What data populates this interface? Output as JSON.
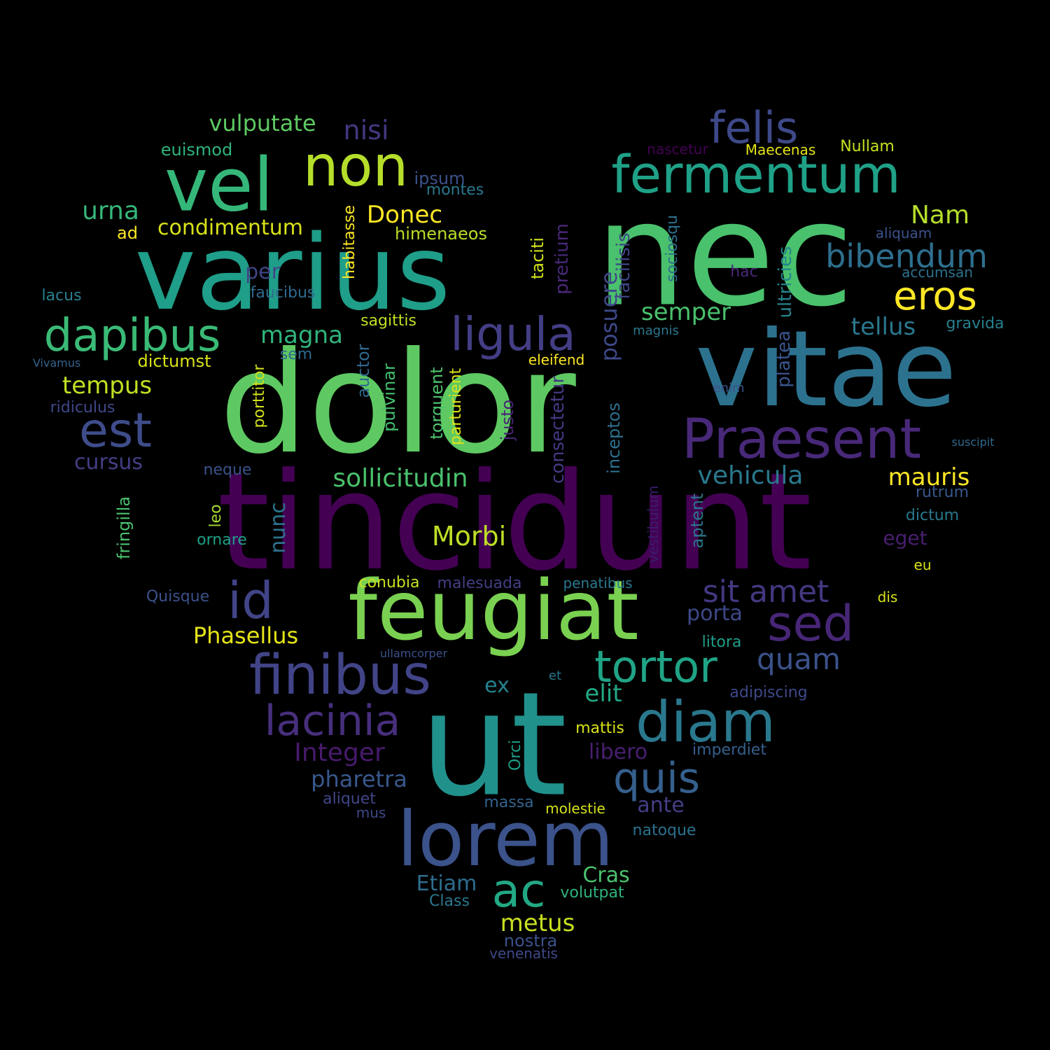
{
  "palette": {
    "background": "#000000",
    "colors": [
      "#440154",
      "#481467",
      "#482878",
      "#3e4989",
      "#31688e",
      "#26828e",
      "#1f9e89",
      "#35b779",
      "#6ece58",
      "#b5de2b",
      "#fde725"
    ]
  },
  "words": [
    {
      "text": "tincidunt",
      "color": "#440154"
    },
    {
      "text": "dolor",
      "color": "#5ec962"
    },
    {
      "text": "nec",
      "color": "#4ac16d"
    },
    {
      "text": "varius",
      "color": "#1f9e89"
    },
    {
      "text": "vitae",
      "color": "#2c728e"
    },
    {
      "text": "ut",
      "color": "#21918c"
    },
    {
      "text": "feugiat",
      "color": "#7ad151"
    },
    {
      "text": "lorem",
      "color": "#3b528b"
    },
    {
      "text": "vel",
      "color": "#35b779"
    },
    {
      "text": "non",
      "color": "#b5de2b"
    },
    {
      "text": "fermentum",
      "color": "#1fa187"
    },
    {
      "text": "Praesent",
      "color": "#482878"
    },
    {
      "text": "finibus",
      "color": "#414487"
    },
    {
      "text": "dapibus",
      "color": "#3aba76"
    },
    {
      "text": "diam",
      "color": "#2a788e"
    },
    {
      "text": "ligula",
      "color": "#433e85"
    },
    {
      "text": "felis",
      "color": "#3e4989"
    },
    {
      "text": "est",
      "color": "#3e4c8a"
    },
    {
      "text": "id",
      "color": "#414487"
    },
    {
      "text": "sed",
      "color": "#482677"
    },
    {
      "text": "tortor",
      "color": "#20a486"
    },
    {
      "text": "lacinia",
      "color": "#472f7d"
    },
    {
      "text": "quis",
      "color": "#355f8d"
    },
    {
      "text": "ac",
      "color": "#22a884"
    },
    {
      "text": "eros",
      "color": "#fde725"
    },
    {
      "text": "bibendum",
      "color": "#2e6f8e"
    },
    {
      "text": "sit amet",
      "color": "#453781"
    },
    {
      "text": "quam",
      "color": "#3b528b"
    },
    {
      "text": "urna",
      "color": "#35b779"
    },
    {
      "text": "nisi",
      "color": "#453781"
    },
    {
      "text": "vulputate",
      "color": "#5ec962"
    },
    {
      "text": "Donec",
      "color": "#fde725"
    },
    {
      "text": "Nam",
      "color": "#b5de2b"
    },
    {
      "text": "Morbi",
      "color": "#bddf26"
    },
    {
      "text": "sollicitudin",
      "color": "#4ac16d"
    },
    {
      "text": "vehicula",
      "color": "#2a788e"
    },
    {
      "text": "mauris",
      "color": "#fde725"
    },
    {
      "text": "magna",
      "color": "#2fb47c"
    },
    {
      "text": "semper",
      "color": "#4ac16d"
    },
    {
      "text": "tellus",
      "color": "#2a788e"
    },
    {
      "text": "tempus",
      "color": "#c2df23"
    },
    {
      "text": "cursus",
      "color": "#433e85"
    },
    {
      "text": "condimentum",
      "color": "#d8e219"
    },
    {
      "text": "Integer",
      "color": "#481a6c"
    },
    {
      "text": "pharetra",
      "color": "#38588c"
    },
    {
      "text": "Phasellus",
      "color": "#e5e419"
    },
    {
      "text": "metus",
      "color": "#c8e020"
    },
    {
      "text": "Cras",
      "color": "#4ac16d"
    },
    {
      "text": "Etiam",
      "color": "#2e6e8e"
    },
    {
      "text": "elit",
      "color": "#22a884"
    },
    {
      "text": "ante",
      "color": "#433e85"
    },
    {
      "text": "porta",
      "color": "#3e4989"
    },
    {
      "text": "libero",
      "color": "#481f70"
    },
    {
      "text": "per",
      "color": "#404688"
    },
    {
      "text": "ex",
      "color": "#26828e"
    },
    {
      "text": "nunc",
      "color": "#2c728e"
    },
    {
      "text": "posuere",
      "color": "#3e4989"
    },
    {
      "text": "pretium",
      "color": "#482878"
    },
    {
      "text": "ultricies",
      "color": "#25848e"
    },
    {
      "text": "platea",
      "color": "#39558c"
    },
    {
      "text": "facilisis",
      "color": "#404688"
    },
    {
      "text": "consectetur",
      "color": "#443983"
    },
    {
      "text": "inceptos",
      "color": "#2d708e"
    },
    {
      "text": "auctor",
      "color": "#31688e"
    },
    {
      "text": "pulvinar",
      "color": "#44bf70"
    },
    {
      "text": "torquent",
      "color": "#4ec36b"
    },
    {
      "text": "parturient",
      "color": "#dde318"
    },
    {
      "text": "justo",
      "color": "#482475"
    },
    {
      "text": "habitasse",
      "color": "#fde725"
    },
    {
      "text": "taciti",
      "color": "#d0e11c"
    },
    {
      "text": "sociosqu",
      "color": "#2d708e"
    },
    {
      "text": "aptent",
      "color": "#2b758e"
    },
    {
      "text": "vestibulum",
      "color": "#3b1c6f"
    },
    {
      "text": "fringilla",
      "color": "#4ac16d"
    },
    {
      "text": "porttitor",
      "color": "#d2e21b"
    },
    {
      "text": "leo",
      "color": "#a8db34"
    },
    {
      "text": "Orci",
      "color": "#1f9f88"
    },
    {
      "text": "ipsum",
      "color": "#3b528b"
    },
    {
      "text": "montes",
      "color": "#2a788e"
    },
    {
      "text": "himenaeos",
      "color": "#b8de29"
    },
    {
      "text": "euismod",
      "color": "#2fb47c"
    },
    {
      "text": "ad",
      "color": "#fde725"
    },
    {
      "text": "lacus",
      "color": "#27808e"
    },
    {
      "text": "faucibus",
      "color": "#2f6b8e"
    },
    {
      "text": "sagittis",
      "color": "#c2df23"
    },
    {
      "text": "dictumst",
      "color": "#d8e219"
    },
    {
      "text": "sem",
      "color": "#31688e"
    },
    {
      "text": "Vivamus",
      "color": "#33638d"
    },
    {
      "text": "ridiculus",
      "color": "#3f4889"
    },
    {
      "text": "neque",
      "color": "#3b528b"
    },
    {
      "text": "ornare",
      "color": "#1fa187"
    },
    {
      "text": "Quisque",
      "color": "#3b528b"
    },
    {
      "text": "malesuada",
      "color": "#433e85"
    },
    {
      "text": "conubia",
      "color": "#c8e020"
    },
    {
      "text": "penatibus",
      "color": "#2a788e"
    },
    {
      "text": "ullamcorper",
      "color": "#3b528b"
    },
    {
      "text": "aliquet",
      "color": "#404688"
    },
    {
      "text": "mus",
      "color": "#3e4989"
    },
    {
      "text": "massa",
      "color": "#33638d"
    },
    {
      "text": "molestie",
      "color": "#d5e21a"
    },
    {
      "text": "Class",
      "color": "#2a788e"
    },
    {
      "text": "volutpat",
      "color": "#2fb47c"
    },
    {
      "text": "nostra",
      "color": "#3b528b"
    },
    {
      "text": "venenatis",
      "color": "#3e4989"
    },
    {
      "text": "natoque",
      "color": "#2c728e"
    },
    {
      "text": "imperdiet",
      "color": "#355f8d"
    },
    {
      "text": "mattis",
      "color": "#d8e219"
    },
    {
      "text": "adipiscing",
      "color": "#3e4989"
    },
    {
      "text": "et",
      "color": "#2a788e"
    },
    {
      "text": "litora",
      "color": "#1f9e89"
    },
    {
      "text": "enim",
      "color": "#3b528b"
    },
    {
      "text": "magnis",
      "color": "#2a788e"
    },
    {
      "text": "eleifend",
      "color": "#fde725"
    },
    {
      "text": "hac",
      "color": "#482878"
    },
    {
      "text": "nascetur",
      "color": "#440154"
    },
    {
      "text": "Maecenas",
      "color": "#e5e419"
    },
    {
      "text": "Nullam",
      "color": "#c8e020"
    },
    {
      "text": "aliquam",
      "color": "#3b528b"
    },
    {
      "text": "accumsan",
      "color": "#2c728e"
    },
    {
      "text": "gravida",
      "color": "#27808e"
    },
    {
      "text": "suscipit",
      "color": "#31688e"
    },
    {
      "text": "rutrum",
      "color": "#38588c"
    },
    {
      "text": "dictum",
      "color": "#2a788e"
    },
    {
      "text": "eget",
      "color": "#481f70"
    },
    {
      "text": "eu",
      "color": "#d8e219"
    },
    {
      "text": "dis",
      "color": "#d8e219"
    }
  ]
}
